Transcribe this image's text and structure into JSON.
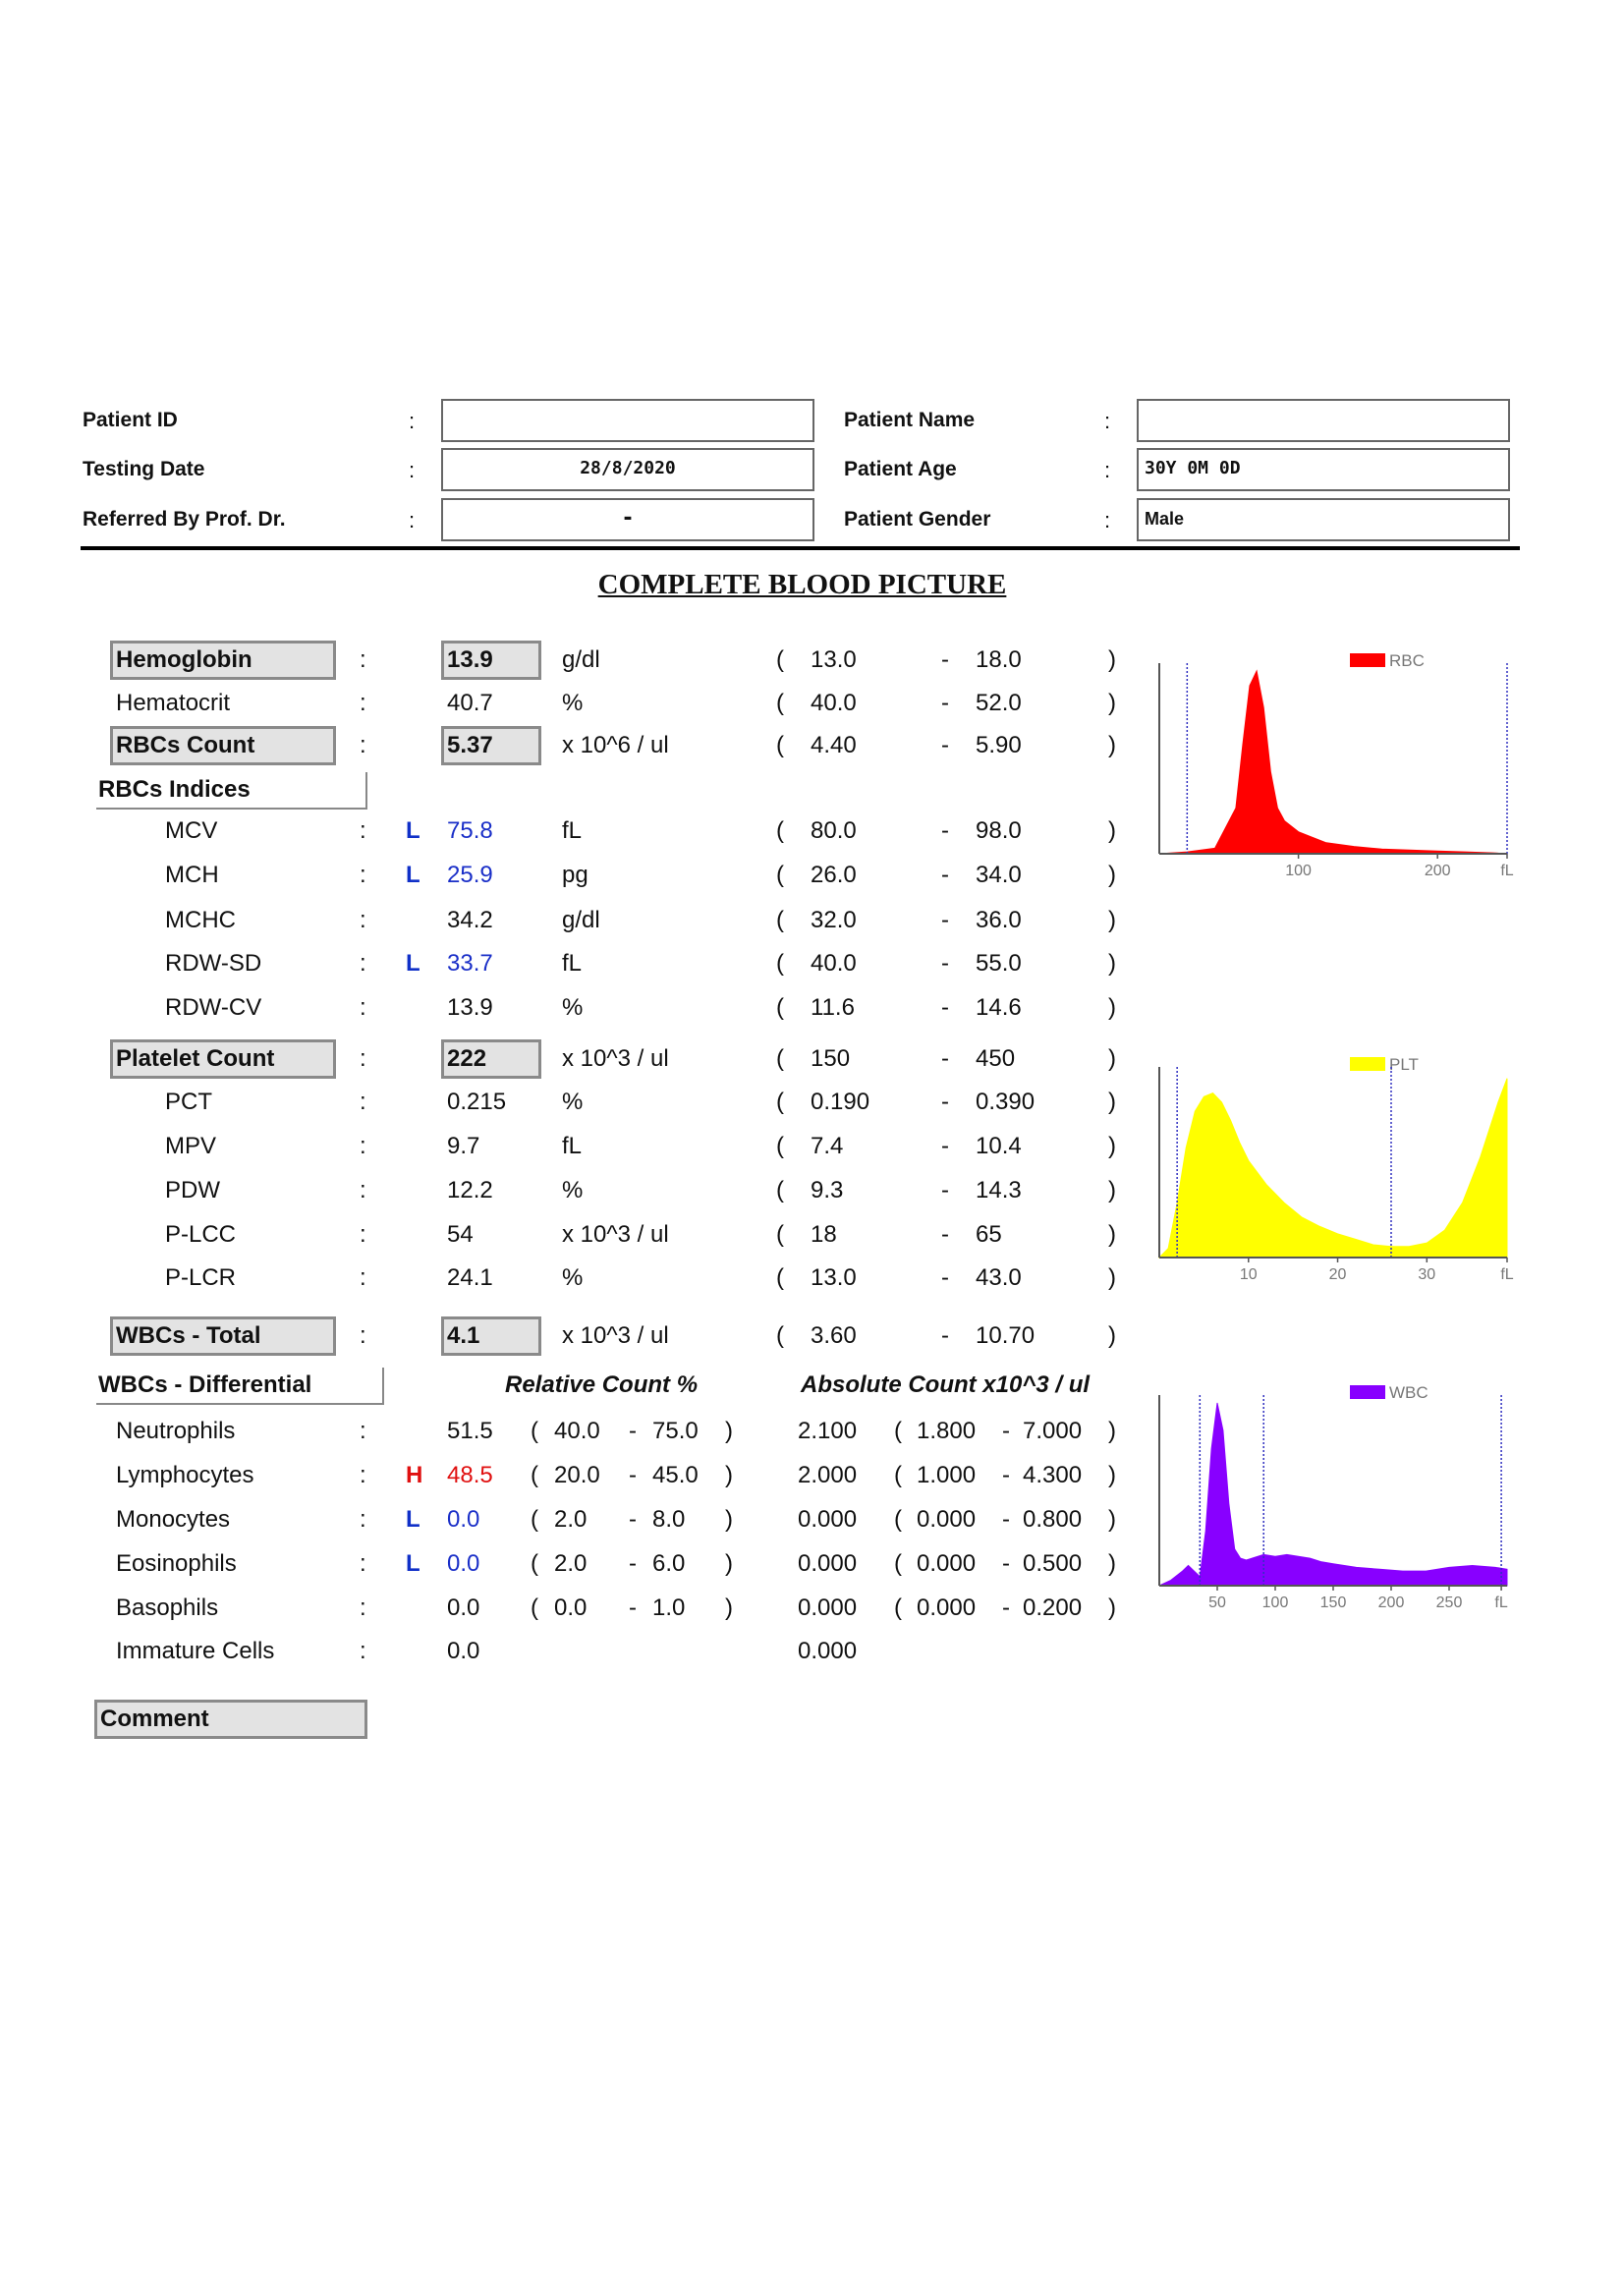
{
  "header": {
    "patient_id_label": "Patient ID",
    "patient_id_value": "",
    "testing_date_label": "Testing Date",
    "testing_date_value": "28/8/2020",
    "referred_label": "Referred By Prof. Dr.",
    "referred_value": "-",
    "patient_name_label": "Patient Name",
    "patient_name_value": "",
    "patient_age_label": "Patient Age",
    "patient_age_value": "30Y  0M  0D",
    "patient_gender_label": "Patient Gender",
    "patient_gender_value": "Male",
    "colon": ":"
  },
  "title": "COMPLETE BLOOD PICTURE",
  "tests": [
    {
      "name": "Hemoglobin",
      "boxed": true,
      "flag": "",
      "value": "13.9",
      "unit": "g/dl",
      "low": "13.0",
      "high": "18.0"
    },
    {
      "name": "Hematocrit",
      "boxed": false,
      "flag": "",
      "value": "40.7",
      "unit": "%",
      "low": "40.0",
      "high": "52.0"
    },
    {
      "name": "RBCs Count",
      "boxed": true,
      "flag": "",
      "value": "5.37",
      "unit": "x 10^6 / ul",
      "low": "4.40",
      "high": "5.90"
    },
    {
      "name": "MCV",
      "boxed": false,
      "flag": "L",
      "value": "75.8",
      "unit": "fL",
      "low": "80.0",
      "high": "98.0"
    },
    {
      "name": "MCH",
      "boxed": false,
      "flag": "L",
      "value": "25.9",
      "unit": "pg",
      "low": "26.0",
      "high": "34.0"
    },
    {
      "name": "MCHC",
      "boxed": false,
      "flag": "",
      "value": "34.2",
      "unit": "g/dl",
      "low": "32.0",
      "high": "36.0"
    },
    {
      "name": "RDW-SD",
      "boxed": false,
      "flag": "L",
      "value": "33.7",
      "unit": "fL",
      "low": "40.0",
      "high": "55.0"
    },
    {
      "name": "RDW-CV",
      "boxed": false,
      "flag": "",
      "value": "13.9",
      "unit": "%",
      "low": "11.6",
      "high": "14.6"
    },
    {
      "name": "Platelet Count",
      "boxed": true,
      "flag": "",
      "value": "222",
      "unit": "x 10^3 / ul",
      "low": "150",
      "high": "450"
    },
    {
      "name": "PCT",
      "boxed": false,
      "flag": "",
      "value": "0.215",
      "unit": "%",
      "low": "0.190",
      "high": "0.390"
    },
    {
      "name": "MPV",
      "boxed": false,
      "flag": "",
      "value": "9.7",
      "unit": "fL",
      "low": "7.4",
      "high": "10.4"
    },
    {
      "name": "PDW",
      "boxed": false,
      "flag": "",
      "value": "12.2",
      "unit": "%",
      "low": "9.3",
      "high": "14.3"
    },
    {
      "name": "P-LCC",
      "boxed": false,
      "flag": "",
      "value": "54",
      "unit": "x 10^3 / ul",
      "low": "18",
      "high": "65"
    },
    {
      "name": "P-LCR",
      "boxed": false,
      "flag": "",
      "value": "24.1",
      "unit": "%",
      "low": "13.0",
      "high": "43.0"
    },
    {
      "name": "WBCs - Total",
      "boxed": true,
      "flag": "",
      "value": "4.1",
      "unit": "x 10^3 / ul",
      "low": "3.60",
      "high": "10.70"
    }
  ],
  "rbc_indices_label": "RBCs Indices",
  "wbc_diff_label": "WBCs - Differential",
  "relative_header": "Relative Count %",
  "absolute_header": "Absolute Count  x10^3 / ul",
  "differential": [
    {
      "name": "Neutrophils",
      "flag": "",
      "rel": "51.5",
      "rel_low": "40.0",
      "rel_high": "75.0",
      "abs": "2.100",
      "abs_low": "1.800",
      "abs_high": "7.000"
    },
    {
      "name": "Lymphocytes",
      "flag": "H",
      "rel": "48.5",
      "rel_low": "20.0",
      "rel_high": "45.0",
      "abs": "2.000",
      "abs_low": "1.000",
      "abs_high": "4.300"
    },
    {
      "name": "Monocytes",
      "flag": "L",
      "rel": "0.0",
      "rel_low": "2.0",
      "rel_high": "8.0",
      "abs": "0.000",
      "abs_low": "0.000",
      "abs_high": "0.800"
    },
    {
      "name": "Eosinophils",
      "flag": "L",
      "rel": "0.0",
      "rel_low": "2.0",
      "rel_high": "6.0",
      "abs": "0.000",
      "abs_low": "0.000",
      "abs_high": "0.500"
    },
    {
      "name": "Basophils",
      "flag": "",
      "rel": "0.0",
      "rel_low": "0.0",
      "rel_high": "1.0",
      "abs": "0.000",
      "abs_low": "0.000",
      "abs_high": "0.200"
    },
    {
      "name": "Immature Cells",
      "flag": "",
      "rel": "0.0",
      "rel_low": "",
      "rel_high": "",
      "abs": "0.000",
      "abs_low": "",
      "abs_high": ""
    }
  ],
  "comment_label": "Comment",
  "chart_data": [
    {
      "type": "area",
      "legend": "RBC",
      "color": "#ff0000",
      "x_ticks": [
        "100",
        "200",
        "fL"
      ],
      "x_tick_values": [
        100,
        200,
        250
      ],
      "xlim": [
        0,
        250
      ],
      "discriminators": [
        20,
        250
      ],
      "x": [
        0,
        20,
        40,
        55,
        60,
        65,
        70,
        75,
        80,
        85,
        90,
        100,
        110,
        120,
        140,
        160,
        180,
        200,
        220,
        240,
        250
      ],
      "y": [
        0,
        0.01,
        0.03,
        0.25,
        0.6,
        0.92,
        1.0,
        0.8,
        0.45,
        0.25,
        0.18,
        0.12,
        0.09,
        0.06,
        0.04,
        0.025,
        0.02,
        0.015,
        0.01,
        0.005,
        0
      ]
    },
    {
      "type": "area",
      "legend": "PLT",
      "color": "#ffff00",
      "x_ticks": [
        "10",
        "20",
        "30",
        "fL"
      ],
      "x_tick_values": [
        10,
        20,
        30,
        39
      ],
      "xlim": [
        0,
        39
      ],
      "discriminators": [
        2,
        26
      ],
      "x": [
        0,
        1,
        2,
        3,
        4,
        5,
        6,
        7,
        8,
        9,
        10,
        12,
        14,
        16,
        18,
        20,
        22,
        24,
        26,
        28,
        30,
        32,
        34,
        36,
        38,
        39
      ],
      "y": [
        0,
        0.05,
        0.3,
        0.6,
        0.8,
        0.88,
        0.9,
        0.85,
        0.75,
        0.63,
        0.53,
        0.4,
        0.3,
        0.22,
        0.17,
        0.13,
        0.1,
        0.07,
        0.06,
        0.06,
        0.08,
        0.15,
        0.3,
        0.55,
        0.85,
        0.98
      ]
    },
    {
      "type": "area",
      "legend": "WBC",
      "color": "#8800ff",
      "x_ticks": [
        "50",
        "100",
        "150",
        "200",
        "250",
        "fL"
      ],
      "x_tick_values": [
        50,
        100,
        150,
        200,
        250,
        295
      ],
      "xlim": [
        0,
        300
      ],
      "discriminators": [
        35,
        90,
        295
      ],
      "x": [
        0,
        10,
        20,
        25,
        30,
        35,
        40,
        45,
        50,
        55,
        60,
        65,
        70,
        75,
        80,
        85,
        90,
        100,
        110,
        120,
        130,
        140,
        150,
        170,
        190,
        210,
        230,
        250,
        270,
        290,
        300
      ],
      "y": [
        0,
        0.03,
        0.08,
        0.11,
        0.08,
        0.05,
        0.3,
        0.75,
        1.0,
        0.85,
        0.45,
        0.2,
        0.15,
        0.14,
        0.15,
        0.16,
        0.17,
        0.16,
        0.17,
        0.16,
        0.15,
        0.13,
        0.12,
        0.1,
        0.09,
        0.08,
        0.08,
        0.1,
        0.11,
        0.1,
        0.09
      ]
    }
  ]
}
